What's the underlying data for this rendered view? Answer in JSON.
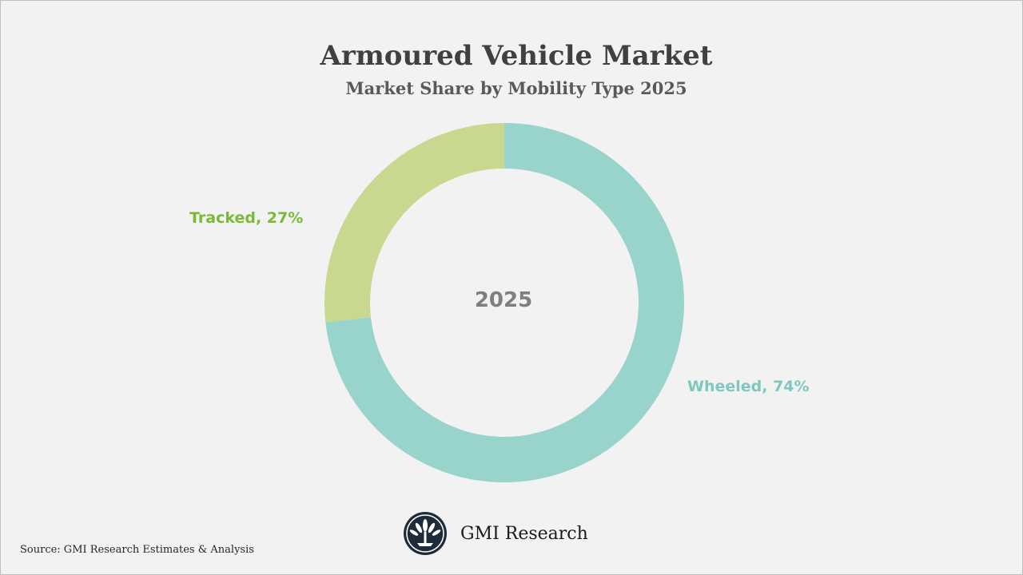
{
  "chart_data": {
    "type": "pie",
    "subtype": "donut",
    "title": "Armoured Vehicle Market",
    "subtitle": "Market Share by Mobility Type 2025",
    "center_label": "2025",
    "slices": [
      {
        "label": "Wheeled",
        "value": 74,
        "value_label": "Wheeled, 74%",
        "color": "#98d3cc"
      },
      {
        "label": "Tracked",
        "value": 27,
        "value_label": "Tracked, 27%",
        "color": "#c8d88f"
      }
    ],
    "label_colors": {
      "Wheeled": "#7ec8c0",
      "Tracked": "#7cb93a"
    }
  },
  "source": "Source: GMI Research Estimates & Analysis",
  "brand": {
    "name": "GMI Research",
    "logo_icon": "gmi-fan-logo-icon"
  },
  "colors": {
    "background": "#f2f2f2",
    "title": "#404040",
    "subtitle": "#595959",
    "center_label": "#7f7f7f"
  }
}
